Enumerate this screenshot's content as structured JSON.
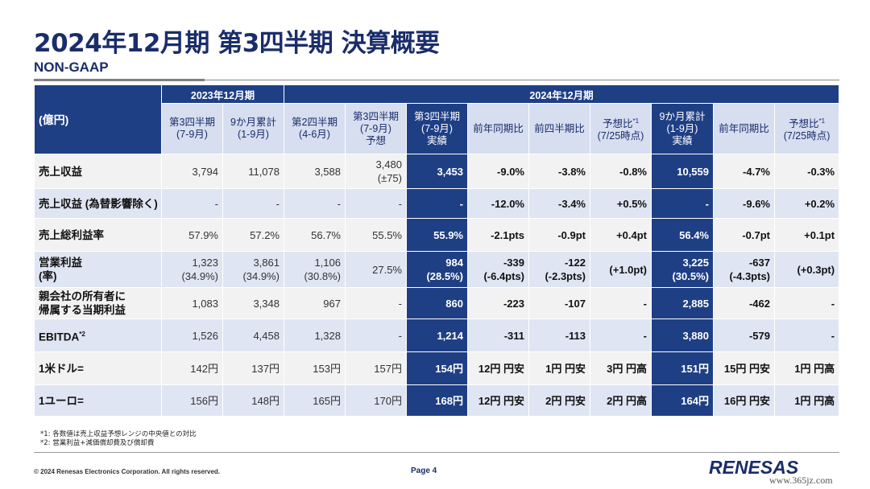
{
  "header": {
    "title": "2024年12月期 第3四半期 決算概要",
    "subtitle": "NON-GAAP"
  },
  "table": {
    "unit_label": "(億円)",
    "period_2023": "2023年12月期",
    "period_2024": "2024年12月期",
    "columns": [
      "第3四半期\n(7-9月)",
      "9か月累計\n(1-9月)",
      "第2四半期\n(4-6月)",
      "第3四半期\n(7-9月)\n予想",
      "第3四半期\n(7-9月)\n実績",
      "前年同期比",
      "前四半期比",
      "予想比*1\n(7/25時点)",
      "9か月累計\n(1-9月)\n実績",
      "前年同期比",
      "予想比*1\n(7/25時点)"
    ],
    "rows": [
      {
        "label": "売上収益",
        "cells": [
          "3,794",
          "11,078",
          "3,588",
          "3,480\n(±75)",
          "3,453",
          "-9.0%",
          "-3.8%",
          "-0.8%",
          "10,559",
          "-4.7%",
          "-0.3%"
        ]
      },
      {
        "label": "売上収益 (為替影響除く)",
        "cells": [
          "-",
          "-",
          "-",
          "-",
          "-",
          "-12.0%",
          "-3.4%",
          "+0.5%",
          "-",
          "-9.6%",
          "+0.2%"
        ]
      },
      {
        "label": "売上総利益率",
        "cells": [
          "57.9%",
          "57.2%",
          "56.7%",
          "55.5%",
          "55.9%",
          "-2.1pts",
          "-0.9pt",
          "+0.4pt",
          "56.4%",
          "-0.7pt",
          "+0.1pt"
        ]
      },
      {
        "label": "営業利益\n(率)",
        "cells": [
          "1,323\n(34.9%)",
          "3,861\n(34.9%)",
          "1,106\n(30.8%)",
          "27.5%",
          "984\n(28.5%)",
          "-339\n(-6.4pts)",
          "-122\n(-2.3pts)",
          "(+1.0pt)",
          "3,225\n(30.5%)",
          "-637\n(-4.3pts)",
          "(+0.3pt)"
        ]
      },
      {
        "label": "親会社の所有者に\n帰属する当期利益",
        "cells": [
          "1,083",
          "3,348",
          "967",
          "-",
          "860",
          "-223",
          "-107",
          "-",
          "2,885",
          "-462",
          "-"
        ]
      },
      {
        "label": "EBITDA",
        "label_sup": "*2",
        "cells": [
          "1,526",
          "4,458",
          "1,328",
          "-",
          "1,214",
          "-311",
          "-113",
          "-",
          "3,880",
          "-579",
          "-"
        ]
      },
      {
        "label": "1米ドル=",
        "cells": [
          "142円",
          "137円",
          "153円",
          "157円",
          "154円",
          "12円 円安",
          "1円 円安",
          "3円 円高",
          "151円",
          "15円 円安",
          "1円 円高"
        ]
      },
      {
        "label": "1ユーロ=",
        "cells": [
          "156円",
          "148円",
          "165円",
          "170円",
          "168円",
          "12円 円安",
          "2円 円安",
          "2円 円高",
          "164円",
          "16円 円安",
          "1円 円高"
        ]
      }
    ]
  },
  "notes": [
    "*1: 各数値は売上収益予想レンジの中央値との対比",
    "*2: 営業利益+減価償却費及び償却費"
  ],
  "footer": {
    "copyright": "© 2024 Renesas Electronics Corporation. All rights reserved.",
    "page": "Page 4",
    "logo_text": "RENESAS",
    "watermark": "www.365jz.com"
  }
}
